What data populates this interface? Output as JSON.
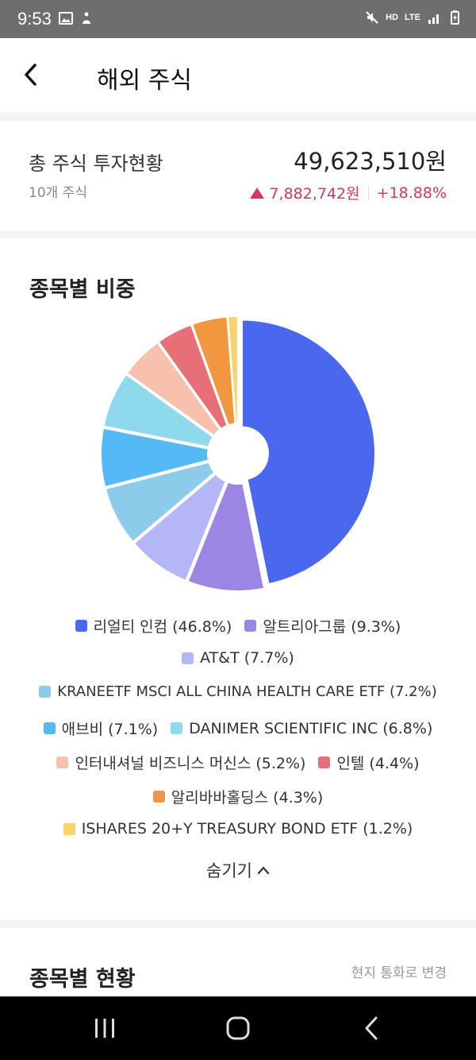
{
  "status_bar": {
    "time": "9:53",
    "net_label": "HD",
    "lte_label": "LTE",
    "icons": [
      "image-icon",
      "accessibility-icon",
      "mute-icon",
      "signal-icon",
      "battery-icon"
    ]
  },
  "header": {
    "title": "해외 주식",
    "back_icon": "chevron-left-icon"
  },
  "summary": {
    "label": "총 주식 투자현황",
    "count": "10개 주식",
    "total": "49,623,510원",
    "change_amount": "7,882,742원",
    "change_percent": "+18.88%",
    "change_color": "#d6365f"
  },
  "weights": {
    "title": "종목별 비중",
    "hide_label": "숨기기"
  },
  "chart_data": {
    "type": "pie",
    "categories": [
      "리얼티 인컴",
      "알트리아그룹",
      "AT&T",
      "KRANEETF MSCI ALL CHINA HEALTH CARE ETF",
      "애브비",
      "DANIMER SCIENTIFIC INC",
      "인터내셔널 비즈니스 머신스",
      "인텔",
      "알리바바홀딩스",
      "ISHARES 20+Y TREASURY BOND ETF"
    ],
    "values": [
      46.8,
      9.3,
      7.7,
      7.2,
      7.1,
      6.8,
      5.2,
      4.4,
      4.3,
      1.2
    ],
    "colors": [
      "#4a68ee",
      "#9b87e3",
      "#b4b6f8",
      "#8ccbea",
      "#55b9f5",
      "#8ed9ec",
      "#f8c1ad",
      "#e76f77",
      "#f0973f",
      "#f6d36b"
    ],
    "legend_labels": [
      "리얼티 인컴 (46.8%)",
      "알트리아그룹 (9.3%)",
      "AT&T (7.7%)",
      "KRANEETF MSCI ALL CHINA HEALTH CARE ETF (7.2%)",
      "애브비 (7.1%)",
      "DANIMER SCIENTIFIC INC (6.8%)",
      "인터내셔널 비즈니스 머신스 (5.2%)",
      "인텔 (4.4%)",
      "알리바바홀딩스 (4.3%)",
      "ISHARES 20+Y TREASURY BOND ETF (1.2%)"
    ]
  },
  "holdings_status": {
    "title": "종목별 현황",
    "currency_link": "현지 통화로 변경"
  },
  "nav": {
    "icons": [
      "recent-apps-icon",
      "home-icon",
      "back-icon"
    ]
  }
}
